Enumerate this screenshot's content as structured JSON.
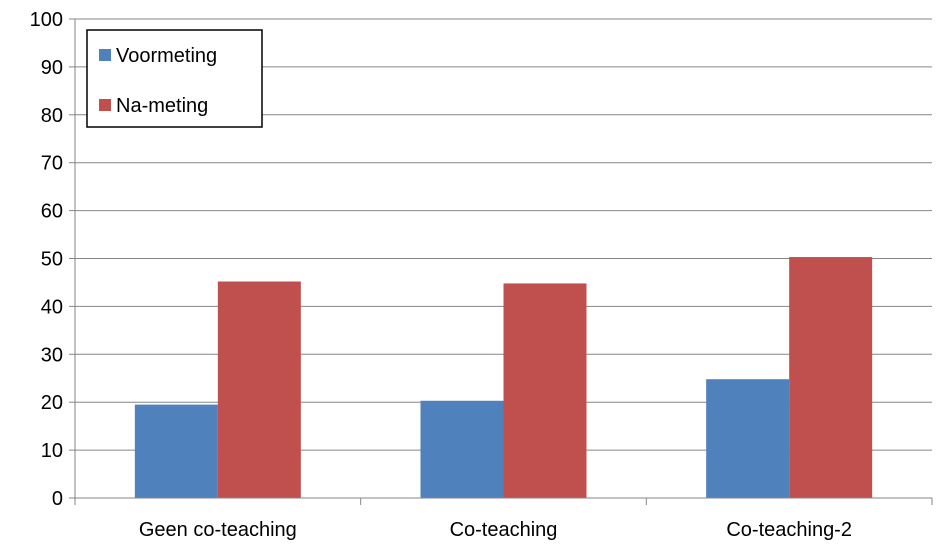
{
  "chart_data": {
    "type": "bar",
    "categories": [
      "Geen co-teaching",
      "Co-teaching",
      "Co-teaching-2"
    ],
    "series": [
      {
        "name": "Voormeting",
        "values": [
          19.5,
          20.3,
          24.8
        ],
        "color": "#4F81BD"
      },
      {
        "name": "Na-meting",
        "values": [
          45.2,
          44.8,
          50.3
        ],
        "color": "#C0504D"
      }
    ],
    "title": "",
    "xlabel": "",
    "ylabel": "",
    "ylim": [
      0,
      100
    ],
    "yticks": [
      "0",
      "10",
      "20",
      "30",
      "40",
      "50",
      "60",
      "70",
      "80",
      "90",
      "100"
    ],
    "grid": true,
    "legend_position": "top-left"
  }
}
